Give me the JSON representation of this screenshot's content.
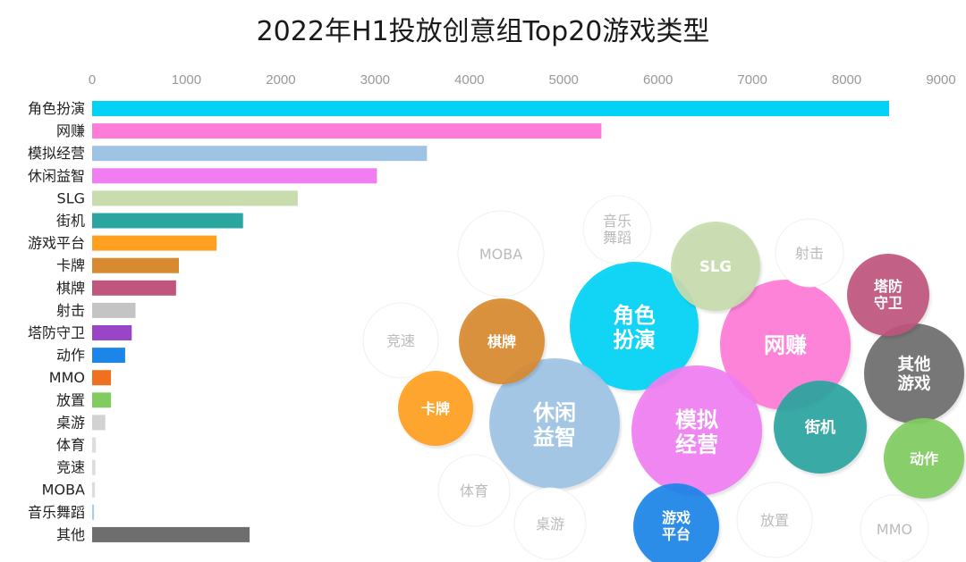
{
  "title": "2022年H1投放创意组Top20游戏类型",
  "chart_data": [
    {
      "type": "bar",
      "orientation": "horizontal",
      "title": "2022年H1投放创意组Top20游戏类型",
      "xlim": [
        0,
        9000
      ],
      "x_ticks": [
        0,
        1000,
        2000,
        3000,
        4000,
        5000,
        6000,
        7000,
        8000,
        9000
      ],
      "x_axis_position": "top",
      "grid": false,
      "categories": [
        "角色扮演",
        "网赚",
        "模拟经营",
        "休闲益智",
        "SLG",
        "街机",
        "游戏平台",
        "卡牌",
        "棋牌",
        "射击",
        "塔防守卫",
        "动作",
        "MMO",
        "放置",
        "桌游",
        "体育",
        "竞速",
        "MOBA",
        "音乐舞蹈",
        "其他"
      ],
      "values": [
        8450,
        5400,
        3550,
        3020,
        2180,
        1600,
        1320,
        920,
        890,
        460,
        420,
        350,
        200,
        200,
        140,
        40,
        35,
        30,
        20,
        1670
      ],
      "colors": [
        "#00d2f5",
        "#ff7bd8",
        "#9ec3e5",
        "#f07ef2",
        "#c8dcae",
        "#2aa5a0",
        "#ffa020",
        "#d88a30",
        "#c0557d",
        "#c4c4c4",
        "#9a44c8",
        "#1b86e8",
        "#f07020",
        "#80cc60",
        "#d2d2d2",
        "#dddddd",
        "#dddddd",
        "#dddddd",
        "#9bd2f2",
        "#6e6e6e"
      ]
    },
    {
      "type": "bubble",
      "bubbles": [
        {
          "label": "角色扮演",
          "color": "#00d2f5",
          "emphasis": true
        },
        {
          "label": "网赚",
          "color": "#ff7bd8",
          "emphasis": true
        },
        {
          "label": "模拟经营",
          "color": "#f07ef2",
          "emphasis": true
        },
        {
          "label": "休闲益智",
          "color": "#9ec3e5",
          "emphasis": true
        },
        {
          "label": "SLG",
          "color": "#c8dcae",
          "emphasis": true
        },
        {
          "label": "街机",
          "color": "#2aa5a0",
          "emphasis": true
        },
        {
          "label": "其他游戏",
          "color": "#6e6e6e",
          "emphasis": true
        },
        {
          "label": "塔防守卫",
          "color": "#c0557d",
          "emphasis": true
        },
        {
          "label": "棋牌",
          "color": "#d88a30",
          "emphasis": true
        },
        {
          "label": "卡牌",
          "color": "#ffa020",
          "emphasis": true
        },
        {
          "label": "游戏平台",
          "color": "#1b86e8",
          "emphasis": true
        },
        {
          "label": "动作",
          "color": "#80cc60",
          "emphasis": true
        },
        {
          "label": "MOBA",
          "color": "#ffffff",
          "emphasis": false
        },
        {
          "label": "音乐舞蹈",
          "color": "#ffffff",
          "emphasis": false
        },
        {
          "label": "射击",
          "color": "#ffffff",
          "emphasis": false
        },
        {
          "label": "竞速",
          "color": "#ffffff",
          "emphasis": false
        },
        {
          "label": "体育",
          "color": "#ffffff",
          "emphasis": false
        },
        {
          "label": "桌游",
          "color": "#ffffff",
          "emphasis": false
        },
        {
          "label": "放置",
          "color": "#ffffff",
          "emphasis": false
        },
        {
          "label": "MMO",
          "color": "#ffffff",
          "emphasis": false
        }
      ]
    }
  ]
}
